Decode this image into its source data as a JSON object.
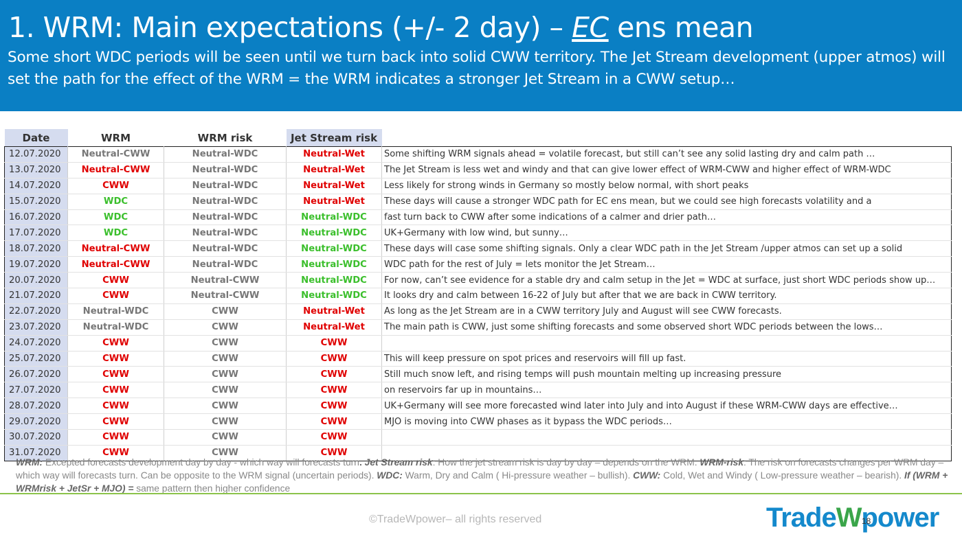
{
  "header": {
    "title_pre": "1. WRM: Main expectations (+/- 2 day) – ",
    "title_ec": "EC",
    "title_post": " ens mean",
    "subtitle": "Some short WDC periods will be seen until we turn back into solid CWW territory. The Jet Stream development (upper atmos) will set the path for the effect of the WRM = the WRM indicates a stronger Jet Stream in a CWW setup…"
  },
  "table": {
    "columns": [
      "Date",
      "WRM",
      "WRM risk",
      "Jet Stream risk"
    ],
    "rows": [
      {
        "date": "12.07.2020",
        "wrm": "Neutral-CWW",
        "wrm_c": "gry",
        "risk": "Neutral-WDC",
        "risk_c": "gry",
        "jet": "Neutral-Wet",
        "jet_c": "red",
        "comment": "Some shifting WRM signals ahead = volatile forecast, but still can’t see any solid lasting dry and calm path …",
        "gs": true
      },
      {
        "date": "13.07.2020",
        "wrm": "Neutral-CWW",
        "wrm_c": "red",
        "risk": "Neutral-WDC",
        "risk_c": "gry",
        "jet": "Neutral-Wet",
        "jet_c": "red",
        "comment": "The Jet Stream is less wet and windy and that can give lower effect of WRM-CWW and higher effect of WRM-WDC",
        "gs": false
      },
      {
        "date": "14.07.2020",
        "wrm": "CWW",
        "wrm_c": "red",
        "risk": "Neutral-WDC",
        "risk_c": "gry",
        "jet": "Neutral-Wet",
        "jet_c": "red",
        "comment": "Less likely for strong winds in Germany so mostly below normal, with short peaks",
        "gs": false
      },
      {
        "date": "15.07.2020",
        "wrm": "WDC",
        "wrm_c": "grn",
        "risk": "Neutral-WDC",
        "risk_c": "gry",
        "jet": "Neutral-Wet",
        "jet_c": "red",
        "comment": "These days will cause a stronger WDC path for EC ens mean, but we could see high forecasts volatility and a",
        "gs": true
      },
      {
        "date": "16.07.2020",
        "wrm": "WDC",
        "wrm_c": "grn",
        "risk": "Neutral-WDC",
        "risk_c": "gry",
        "jet": "Neutral-WDC",
        "jet_c": "grn",
        "comment": "fast turn back to CWW after some indications of a calmer and drier path…",
        "gs": false
      },
      {
        "date": "17.07.2020",
        "wrm": "WDC",
        "wrm_c": "grn",
        "risk": "Neutral-WDC",
        "risk_c": "gry",
        "jet": "Neutral-WDC",
        "jet_c": "grn",
        "comment": "UK+Germany with low wind, but sunny…",
        "gs": false
      },
      {
        "date": "18.07.2020",
        "wrm": "Neutral-CWW",
        "wrm_c": "red",
        "risk": "Neutral-WDC",
        "risk_c": "gry",
        "jet": "Neutral-WDC",
        "jet_c": "grn",
        "comment": "These days will case some shifting signals. Only a clear WDC path in the Jet Stream /upper atmos can set up a solid",
        "gs": true
      },
      {
        "date": "19.07.2020",
        "wrm": "Neutral-CWW",
        "wrm_c": "red",
        "risk": "Neutral-WDC",
        "risk_c": "gry",
        "jet": "Neutral-WDC",
        "jet_c": "grn",
        "comment": "WDC path for the rest of July = lets monitor the Jet Stream…",
        "gs": false
      },
      {
        "date": "20.07.2020",
        "wrm": "CWW",
        "wrm_c": "red",
        "risk": "Neutral-CWW",
        "risk_c": "gry",
        "jet": "Neutral-WDC",
        "jet_c": "grn",
        "comment": "For now, can’t see evidence for a stable dry and calm setup in the Jet = WDC at surface, just short WDC periods show up…",
        "gs": false
      },
      {
        "date": "21.07.2020",
        "wrm": "CWW",
        "wrm_c": "red",
        "risk": "Neutral-CWW",
        "risk_c": "gry",
        "jet": "Neutral-WDC",
        "jet_c": "grn",
        "comment": "It looks dry and calm between 16-22 of July but after that we are back in CWW territory.",
        "gs": false
      },
      {
        "date": "22.07.2020",
        "wrm": "Neutral-WDC",
        "wrm_c": "gry",
        "risk": "CWW",
        "risk_c": "gry",
        "jet": "Neutral-Wet",
        "jet_c": "red",
        "comment": "As long as the Jet Stream are in a CWW territory July and August will see CWW forecasts.",
        "gs": true
      },
      {
        "date": "23.07.2020",
        "wrm": "Neutral-WDC",
        "wrm_c": "gry",
        "risk": "CWW",
        "risk_c": "gry",
        "jet": "Neutral-Wet",
        "jet_c": "red",
        "comment": "The main path is CWW, just some shifting forecasts and some observed short WDC periods between the lows…",
        "gs": false
      },
      {
        "date": "24.07.2020",
        "wrm": "CWW",
        "wrm_c": "red",
        "risk": "CWW",
        "risk_c": "gry",
        "jet": "CWW",
        "jet_c": "red",
        "comment": "",
        "gs": false
      },
      {
        "date": "25.07.2020",
        "wrm": "CWW",
        "wrm_c": "red",
        "risk": "CWW",
        "risk_c": "gry",
        "jet": "CWW",
        "jet_c": "red",
        "comment": "This will keep pressure on spot prices and reservoirs will fill up fast.",
        "gs": false
      },
      {
        "date": "26.07.2020",
        "wrm": "CWW",
        "wrm_c": "red",
        "risk": "CWW",
        "risk_c": "gry",
        "jet": "CWW",
        "jet_c": "red",
        "comment": "Still much snow left, and rising temps will push mountain melting up increasing pressure",
        "gs": false
      },
      {
        "date": "27.07.2020",
        "wrm": "CWW",
        "wrm_c": "red",
        "risk": "CWW",
        "risk_c": "gry",
        "jet": "CWW",
        "jet_c": "red",
        "comment": "on reservoirs far up in mountains…",
        "gs": false
      },
      {
        "date": "28.07.2020",
        "wrm": "CWW",
        "wrm_c": "red",
        "risk": "CWW",
        "risk_c": "gry",
        "jet": "CWW",
        "jet_c": "red",
        "comment": "UK+Germany will see more forecasted wind later into July and into August if these WRM-CWW days are effective…",
        "gs": false
      },
      {
        "date": "29.07.2020",
        "wrm": "CWW",
        "wrm_c": "red",
        "risk": "CWW",
        "risk_c": "gry",
        "jet": "CWW",
        "jet_c": "red",
        "comment": "MJO is moving into CWW phases as it bypass the WDC periods…",
        "gs": false
      },
      {
        "date": "30.07.2020",
        "wrm": "CWW",
        "wrm_c": "red",
        "risk": "CWW",
        "risk_c": "gry",
        "jet": "CWW",
        "jet_c": "red",
        "comment": "",
        "gs": false
      },
      {
        "date": "31.07.2020",
        "wrm": "CWW",
        "wrm_c": "red",
        "risk": "CWW",
        "risk_c": "gry",
        "jet": "CWW",
        "jet_c": "red",
        "comment": "",
        "gs": false
      }
    ]
  },
  "notes": {
    "wrm_label": "WRM:",
    "wrm_text": " Excepted forecasts development day by day - which way will forecasts turn",
    "dot": ".",
    "jet_label": "  Jet Stream risk",
    "jet_text": ": How the jet stream risk is day by day – depends on the WRM. ",
    "risk_label": "WRM-risk",
    "risk_text": ": The risk on forecasts changes per WRM day – which way will forecasts turn. Can be opposite to the WRM signal (uncertain periods). ",
    "wdc_label": "WDC:",
    "wdc_text": " Warm, Dry and Calm ( Hi-pressure weather – bullish). ",
    "cww_label": "CWW:",
    "cww_text": " Cold, Wet and Windy ( Low-pressure weather – bearish). ",
    "if_label": "If (WRM + WRMrisk + JetSr + MJO) =",
    "if_text": " same pattern then higher confidence"
  },
  "footer": {
    "copyright": "©TradeWpower– all rights reserved",
    "page": "18",
    "logo_a": "Trade",
    "logo_w": "W",
    "logo_b": "power"
  }
}
